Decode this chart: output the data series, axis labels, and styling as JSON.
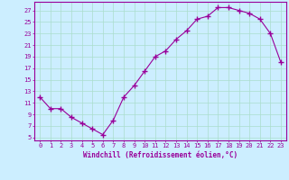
{
  "x": [
    0,
    1,
    2,
    3,
    4,
    5,
    6,
    7,
    8,
    9,
    10,
    11,
    12,
    13,
    14,
    15,
    16,
    17,
    18,
    19,
    20,
    21,
    22,
    23
  ],
  "y": [
    12,
    10,
    10,
    8.5,
    7.5,
    6.5,
    5.5,
    8,
    12,
    14,
    16.5,
    19,
    20,
    22,
    23.5,
    25.5,
    26,
    27.5,
    27.5,
    27,
    26.5,
    25.5,
    23,
    18
  ],
  "line_color": "#990099",
  "marker": "+",
  "bg_color": "#cceeff",
  "grid_color": "#aaddcc",
  "xlabel": "Windchill (Refroidissement éolien,°C)",
  "ylabel_ticks": [
    5,
    7,
    9,
    11,
    13,
    15,
    17,
    19,
    21,
    23,
    25,
    27
  ],
  "xlim": [
    -0.5,
    23.5
  ],
  "ylim": [
    4.5,
    28.5
  ],
  "tick_label_color": "#990099",
  "xlabel_color": "#990099",
  "axis_color": "#990099"
}
